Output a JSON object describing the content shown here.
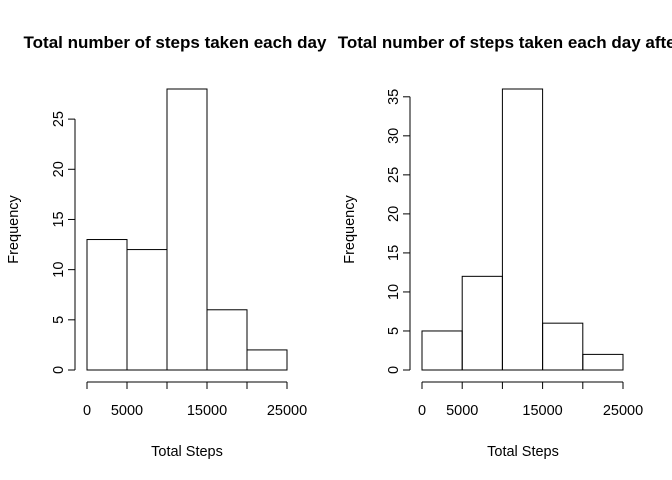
{
  "chart_data": [
    {
      "type": "bar",
      "title": "Total number of steps taken each day",
      "xlabel": "Total Steps",
      "ylabel": "Frequency",
      "bins": [
        [
          0,
          5000
        ],
        [
          5000,
          10000
        ],
        [
          10000,
          15000
        ],
        [
          15000,
          20000
        ],
        [
          20000,
          25000
        ]
      ],
      "values": [
        13,
        12,
        28,
        6,
        2
      ],
      "xlim": [
        0,
        25000
      ],
      "ylim": [
        0,
        28
      ],
      "x_ticks": [
        0,
        5000,
        15000,
        25000
      ],
      "x_ticks_minor": [
        10000,
        20000
      ],
      "y_ticks": [
        0,
        5,
        10,
        15,
        20,
        25
      ],
      "grid": false
    },
    {
      "type": "bar",
      "title": "Total number of steps taken each day after",
      "xlabel": "Total Steps",
      "ylabel": "Frequency",
      "bins": [
        [
          0,
          5000
        ],
        [
          5000,
          10000
        ],
        [
          10000,
          15000
        ],
        [
          15000,
          20000
        ],
        [
          20000,
          25000
        ]
      ],
      "values": [
        5,
        12,
        36,
        6,
        2
      ],
      "xlim": [
        0,
        25000
      ],
      "ylim": [
        0,
        36
      ],
      "x_ticks": [
        0,
        5000,
        15000,
        25000
      ],
      "x_ticks_minor": [
        10000,
        20000
      ],
      "y_ticks": [
        0,
        5,
        10,
        15,
        20,
        25,
        30,
        35
      ],
      "grid": false
    }
  ]
}
